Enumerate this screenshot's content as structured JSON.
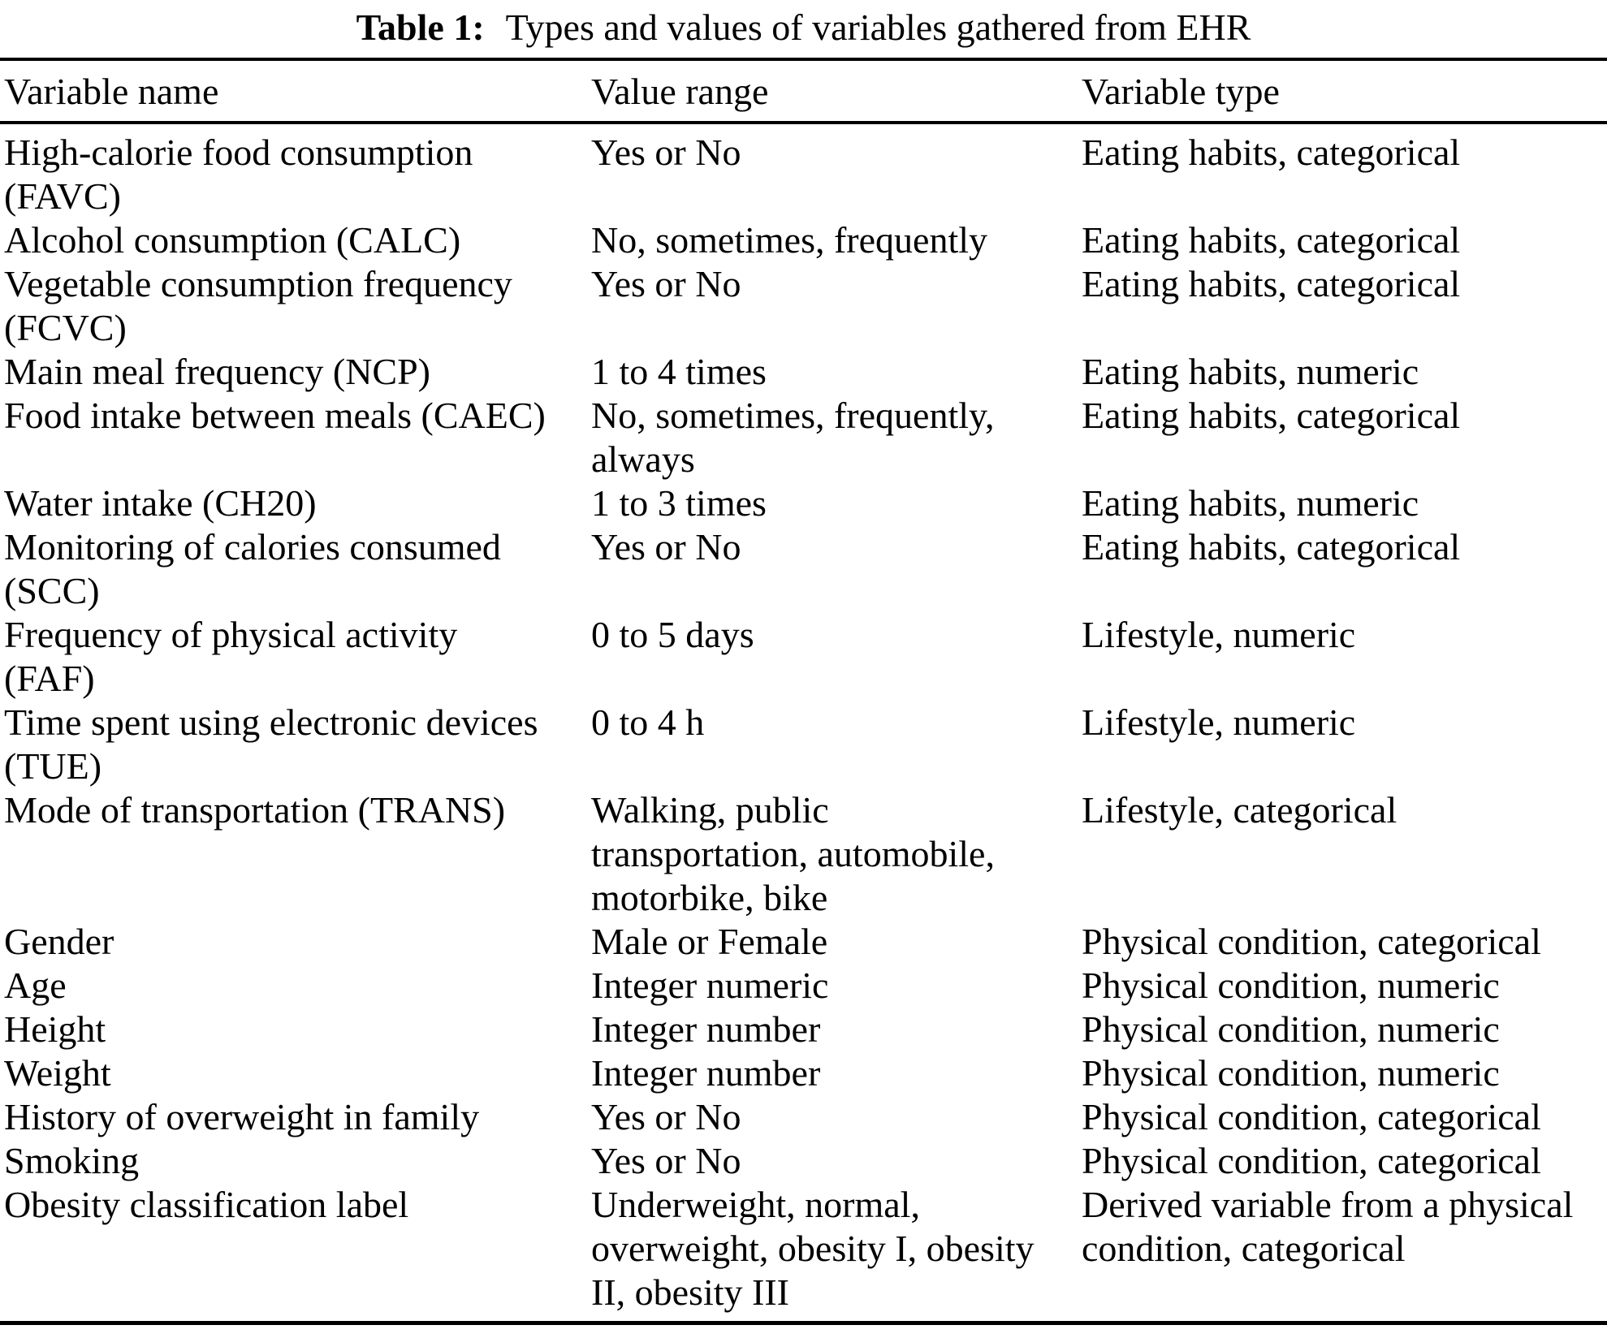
{
  "caption": {
    "label": "Table 1:",
    "text": "Types and values of variables gathered from EHR"
  },
  "table": {
    "columns": [
      "Variable name",
      "Value range",
      "Variable type"
    ],
    "rows": [
      {
        "name": "High-calorie food consumption\n(FAVC)",
        "range": "Yes or No",
        "type": "Eating habits, categorical"
      },
      {
        "name": "Alcohol consumption (CALC)",
        "range": "No, sometimes, frequently",
        "type": "Eating habits, categorical"
      },
      {
        "name": "Vegetable consumption frequency\n(FCVC)",
        "range": "Yes or No",
        "type": "Eating habits, categorical"
      },
      {
        "name": "Main meal frequency (NCP)",
        "range": "1 to 4 times",
        "type": "Eating habits, numeric"
      },
      {
        "name": "Food intake between meals (CAEC)",
        "range": "No, sometimes, frequently,\nalways",
        "type": "Eating habits, categorical"
      },
      {
        "name": "Water intake (CH20)",
        "range": "1 to 3 times",
        "type": "Eating habits, numeric"
      },
      {
        "name": "Monitoring of calories consumed\n(SCC)",
        "range": "Yes or No",
        "type": "Eating habits, categorical"
      },
      {
        "name": "Frequency of physical activity\n(FAF)",
        "range": "0 to 5 days",
        "type": "Lifestyle, numeric"
      },
      {
        "name": "Time spent using electronic devices\n(TUE)",
        "range": "0 to 4 h",
        "type": "Lifestyle, numeric"
      },
      {
        "name": "Mode of transportation (TRANS)",
        "range": "Walking, public\ntransportation, automobile,\nmotorbike, bike",
        "type": "Lifestyle, categorical"
      },
      {
        "name": "Gender",
        "range": "Male or Female",
        "type": "Physical condition, categorical"
      },
      {
        "name": "Age",
        "range": "Integer numeric",
        "type": "Physical condition, numeric"
      },
      {
        "name": "Height",
        "range": "Integer number",
        "type": "Physical condition, numeric"
      },
      {
        "name": "Weight",
        "range": "Integer number",
        "type": "Physical condition, numeric"
      },
      {
        "name": "History of overweight in family",
        "range": "Yes or No",
        "type": "Physical condition, categorical"
      },
      {
        "name": "Smoking",
        "range": "Yes or No",
        "type": "Physical condition, categorical"
      },
      {
        "name": "Obesity classification label",
        "range": "Underweight, normal,\noverweight, obesity I, obesity\nII, obesity III",
        "type": "Derived variable from a physical\ncondition, categorical"
      }
    ]
  }
}
